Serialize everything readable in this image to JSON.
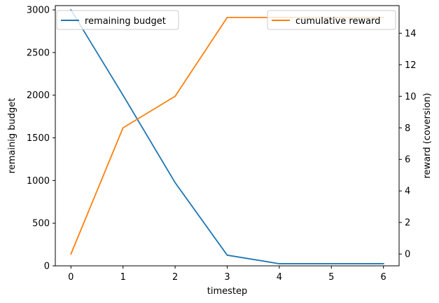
{
  "chart_data": {
    "type": "line",
    "xlabel": "timestep",
    "x": [
      0,
      1,
      2,
      3,
      4,
      5,
      6
    ],
    "xlim": [
      -0.3,
      6.3
    ],
    "xticks": [
      0,
      1,
      2,
      3,
      4,
      5,
      6
    ],
    "grid": false,
    "left_axis": {
      "label": "remainig budget",
      "ylim": [
        0,
        3050
      ],
      "ticks": [
        0,
        500,
        1000,
        1500,
        2000,
        2500,
        3000
      ]
    },
    "right_axis": {
      "label": "reward (coversion)",
      "ylim": [
        -0.75,
        15.75
      ],
      "ticks": [
        0,
        2,
        4,
        6,
        8,
        10,
        12,
        14
      ]
    },
    "series": [
      {
        "name": "remaining budget",
        "axis": "left",
        "color": "#1f77b4",
        "values": [
          3000,
          2000,
          975,
          125,
          25,
          25,
          25
        ],
        "legend_position": "upper-left"
      },
      {
        "name": "cumulative reward",
        "axis": "right",
        "color": "#ff7f0e",
        "values": [
          0,
          8,
          10,
          15,
          15,
          15,
          15
        ],
        "legend_position": "upper-right"
      }
    ]
  }
}
